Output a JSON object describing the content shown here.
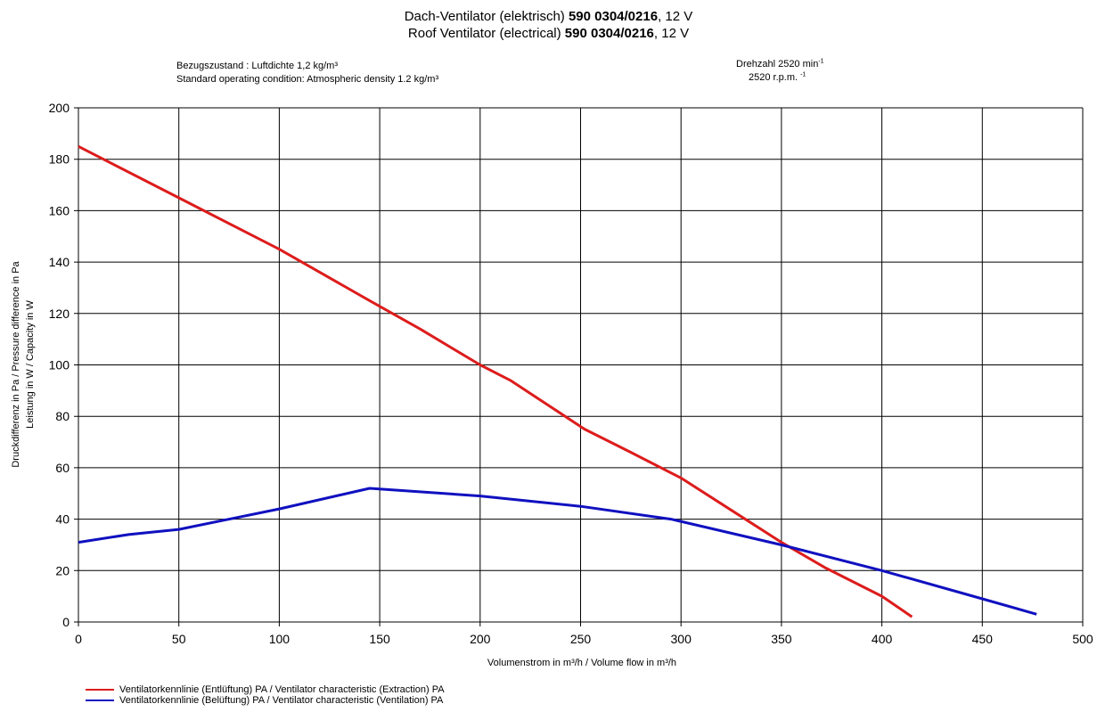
{
  "header": {
    "title1_pre": "Dach-Ventilator (elektrisch) ",
    "title1_bold": "590 0304/0216",
    "title1_post": ", 12 V",
    "title2_pre": "Roof Ventilator (electrical) ",
    "title2_bold": "590 0304/0216",
    "title2_post": ", 12 V"
  },
  "conditions": {
    "line1": "Bezugszustand : Luftdichte 1,2 kg/m³",
    "line2": "Standard operating condition: Atmospheric density 1.2 kg/m³",
    "speed1": "Drehzahl 2520 min",
    "speed1_sup": "-1",
    "speed2": "2520 r.p.m. ",
    "speed2_sup": "-1"
  },
  "colors": {
    "extraction": "#dd1c1c",
    "ventilation": "#1010c0",
    "grid": "#000000"
  },
  "chart_data": {
    "type": "line",
    "xlabel": "Volumenstrom in m³/h / Volume flow in m³/h",
    "ylabel_line1": "Druckdifferenz in Pa / Pressure difference in Pa",
    "ylabel_line2": "Leistung in W / Capacity in W",
    "xlim": [
      0,
      500
    ],
    "ylim": [
      0,
      200
    ],
    "xticks": [
      0,
      50,
      100,
      150,
      200,
      250,
      300,
      350,
      400,
      450,
      500
    ],
    "yticks": [
      0,
      20,
      40,
      60,
      80,
      100,
      120,
      140,
      160,
      180,
      200
    ],
    "grid": true,
    "legend_position": "bottom-left",
    "series": [
      {
        "name": "Ventilatorkennlinie (Entlüftung) PA / Ventilator characteristic (Extraction) PA",
        "color": "#dd1c1c",
        "x": [
          0,
          50,
          100,
          145,
          170,
          200,
          215,
          252,
          275,
          300,
          328,
          350,
          372,
          400,
          415
        ],
        "y": [
          185,
          165,
          145,
          125,
          114,
          100,
          94,
          75,
          66,
          56,
          42,
          31,
          21,
          10,
          2
        ]
      },
      {
        "name": "Ventilatorkennlinie (Belüftung) PA / Ventilator characteristic (Ventilation) PA",
        "color": "#1010c0",
        "x": [
          0,
          25,
          50,
          100,
          145,
          200,
          250,
          295,
          350,
          400,
          450,
          477
        ],
        "y": [
          31,
          34,
          36,
          44,
          52,
          49,
          45,
          40,
          30,
          20,
          9,
          3
        ]
      }
    ]
  }
}
